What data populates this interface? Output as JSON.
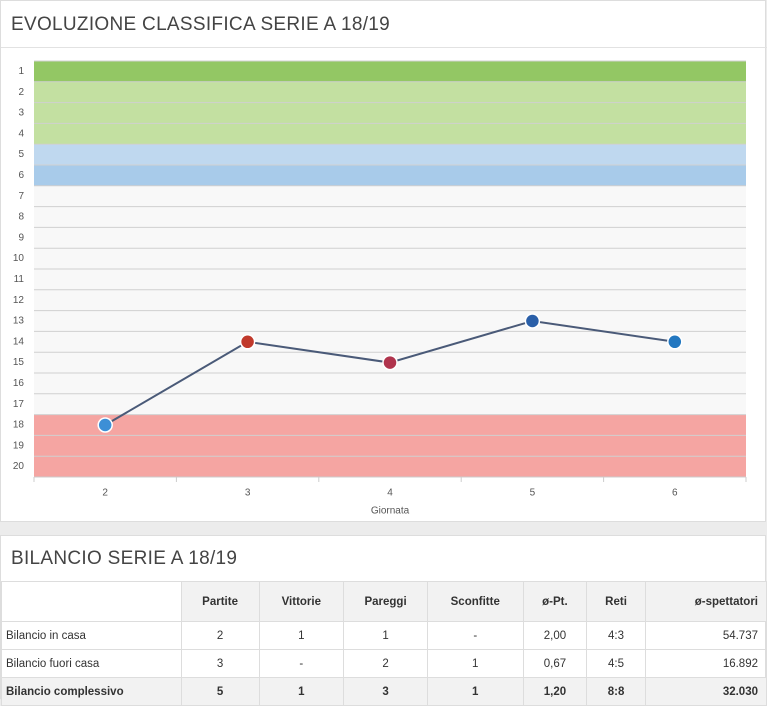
{
  "chart_data": {
    "type": "line",
    "title": "EVOLUZIONE CLASSIFICA SERIE A 18/19",
    "x_label": "Giornata",
    "categories": [
      "2",
      "3",
      "4",
      "5",
      "6"
    ],
    "series": [
      {
        "color": "#4a5a78",
        "values": [
          18,
          14,
          15,
          13,
          14
        ]
      }
    ],
    "marker_colors": [
      "#3d8fd6",
      "#c0392b",
      "#b0344d",
      "#2a5fa8",
      "#2277c0"
    ],
    "ylim": [
      20.5,
      0.5
    ],
    "yticks": [
      1,
      2,
      3,
      4,
      5,
      6,
      7,
      8,
      9,
      10,
      11,
      12,
      13,
      14,
      15,
      16,
      17,
      18,
      19,
      20
    ],
    "zones": [
      {
        "from": 1,
        "to": 1,
        "color": "#93c764"
      },
      {
        "from": 2,
        "to": 4,
        "color": "#c3e0a1"
      },
      {
        "from": 5,
        "to": 5,
        "color": "#bfd8ef"
      },
      {
        "from": 6,
        "to": 6,
        "color": "#a8cbea"
      },
      {
        "from": 18,
        "to": 20,
        "color": "#f5a5a2"
      }
    ],
    "grid": true
  },
  "summary": {
    "title": "BILANCIO SERIE A 18/19",
    "headers": [
      "Partite",
      "Vittorie",
      "Pareggi",
      "Sconfitte",
      "ø-Pt.",
      "Reti",
      "ø-spettatori"
    ],
    "rows": [
      {
        "label": "Bilancio in casa",
        "cells": [
          "2",
          "1",
          "1",
          "-",
          "2,00",
          "4:3",
          "54.737"
        ]
      },
      {
        "label": "Bilancio fuori casa",
        "cells": [
          "3",
          "-",
          "2",
          "1",
          "0,67",
          "4:5",
          "16.892"
        ]
      },
      {
        "label": "Bilancio complessivo",
        "cells": [
          "5",
          "1",
          "3",
          "1",
          "1,20",
          "8:8",
          "32.030"
        ]
      }
    ]
  }
}
